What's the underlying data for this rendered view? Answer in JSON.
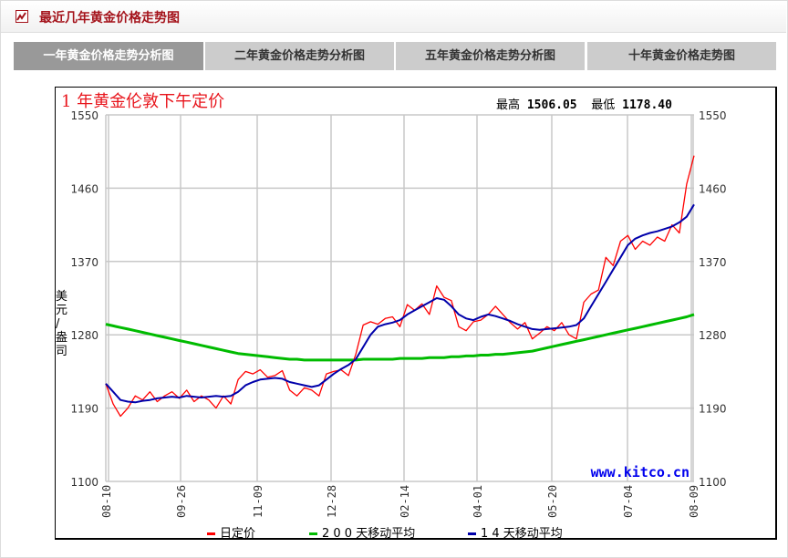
{
  "header": {
    "title": "最近几年黄金价格走势图",
    "icon": "line-chart-icon"
  },
  "tabs": [
    {
      "label": "一年黄金价格走势分析图",
      "active": true
    },
    {
      "label": "二年黄金价格走势分析图",
      "active": false
    },
    {
      "label": "五年黄金价格走势分析图",
      "active": false
    },
    {
      "label": "十年黄金价格走势图",
      "active": false
    }
  ],
  "chart": {
    "title": "1 年黄金伦敦下午定价",
    "high_label": "最高",
    "high_value": "1506.05",
    "low_label": "最低",
    "low_value": "1178.40",
    "ylabel_chars": [
      "美",
      "元",
      "/",
      "盎",
      "司"
    ],
    "watermark": "www.kitco.cn",
    "colors": {
      "daily": "#ff0000",
      "ma200": "#00bb00",
      "ma14": "#0000aa",
      "grid": "#c8c8c8",
      "watermark": "#0000ee"
    },
    "legend": [
      {
        "label": "日定价",
        "color": "#ff0000"
      },
      {
        "label": "2 0 0 天移动平均",
        "color": "#00bb00"
      },
      {
        "label": "1 4 天移动平均",
        "color": "#0000aa"
      }
    ]
  },
  "chart_data": {
    "type": "line",
    "title": "1 年黄金伦敦下午定价",
    "xlabel": "",
    "ylabel": "美元/盎司",
    "ylim": [
      1100,
      1550
    ],
    "yticks": [
      1100,
      1190,
      1280,
      1370,
      1460,
      1550
    ],
    "x_tick_labels": [
      "08-10",
      "09-26",
      "11-09",
      "12-28",
      "02-14",
      "04-01",
      "05-20",
      "07-04",
      "08-09"
    ],
    "grid": true,
    "legend_position": "bottom",
    "annotations": {
      "high": 1506.05,
      "low": 1178.4,
      "source": "www.kitco.cn"
    },
    "x": [
      0,
      1,
      2,
      3,
      4,
      5,
      6,
      7,
      8,
      9,
      10,
      11,
      12,
      13,
      14,
      15,
      16,
      17,
      18,
      19,
      20,
      21,
      22,
      23,
      24,
      25,
      26,
      27,
      28,
      29,
      30,
      31,
      32,
      33,
      34,
      35,
      36,
      37,
      38,
      39,
      40,
      41,
      42,
      43,
      44,
      45,
      46,
      47,
      48,
      49,
      50,
      51,
      52,
      53,
      54,
      55,
      56,
      57,
      58,
      59,
      60,
      61,
      62,
      63,
      64,
      65,
      66,
      67,
      68,
      69,
      70,
      71,
      72,
      73,
      74,
      75,
      76,
      77,
      78,
      79,
      80
    ],
    "series": [
      {
        "name": "日定价",
        "values": [
          1220,
          1195,
          1180,
          1190,
          1205,
          1200,
          1210,
          1198,
          1205,
          1210,
          1202,
          1212,
          1198,
          1205,
          1200,
          1190,
          1205,
          1195,
          1225,
          1235,
          1232,
          1237,
          1228,
          1230,
          1236,
          1212,
          1205,
          1215,
          1212,
          1205,
          1232,
          1235,
          1237,
          1230,
          1256,
          1292,
          1296,
          1293,
          1300,
          1302,
          1290,
          1317,
          1310,
          1318,
          1305,
          1340,
          1326,
          1322,
          1290,
          1285,
          1296,
          1298,
          1305,
          1315,
          1305,
          1295,
          1287,
          1295,
          1275,
          1282,
          1290,
          1285,
          1295,
          1280,
          1275,
          1320,
          1330,
          1335,
          1375,
          1365,
          1395,
          1402,
          1385,
          1395,
          1390,
          1400,
          1395,
          1415,
          1405,
          1465,
          1500
        ]
      },
      {
        "name": "200 天移动平均",
        "values": [
          1293,
          1291,
          1289,
          1287,
          1285,
          1283,
          1281,
          1279,
          1277,
          1275,
          1273,
          1271,
          1269,
          1267,
          1265,
          1263,
          1261,
          1259,
          1257,
          1256,
          1255,
          1254,
          1253,
          1252,
          1251,
          1250,
          1250,
          1249,
          1249,
          1249,
          1249,
          1249,
          1249,
          1249,
          1249,
          1250,
          1250,
          1250,
          1250,
          1250,
          1251,
          1251,
          1251,
          1251,
          1252,
          1252,
          1252,
          1253,
          1253,
          1254,
          1254,
          1255,
          1255,
          1256,
          1256,
          1257,
          1258,
          1259,
          1260,
          1262,
          1264,
          1266,
          1268,
          1270,
          1272,
          1274,
          1276,
          1278,
          1280,
          1282,
          1284,
          1286,
          1288,
          1290,
          1292,
          1294,
          1296,
          1298,
          1300,
          1302,
          1305
        ]
      },
      {
        "name": "14 天移动平均",
        "values": [
          1220,
          1210,
          1200,
          1198,
          1197,
          1199,
          1200,
          1202,
          1203,
          1204,
          1203,
          1205,
          1204,
          1203,
          1204,
          1205,
          1204,
          1205,
          1210,
          1218,
          1222,
          1225,
          1226,
          1227,
          1226,
          1222,
          1220,
          1218,
          1216,
          1218,
          1225,
          1232,
          1238,
          1243,
          1250,
          1265,
          1280,
          1290,
          1293,
          1295,
          1298,
          1305,
          1310,
          1315,
          1320,
          1325,
          1323,
          1315,
          1305,
          1300,
          1298,
          1302,
          1305,
          1303,
          1300,
          1297,
          1293,
          1290,
          1287,
          1286,
          1287,
          1288,
          1289,
          1290,
          1292,
          1300,
          1315,
          1330,
          1345,
          1360,
          1375,
          1390,
          1398,
          1402,
          1405,
          1407,
          1410,
          1413,
          1418,
          1425,
          1440
        ]
      }
    ]
  }
}
